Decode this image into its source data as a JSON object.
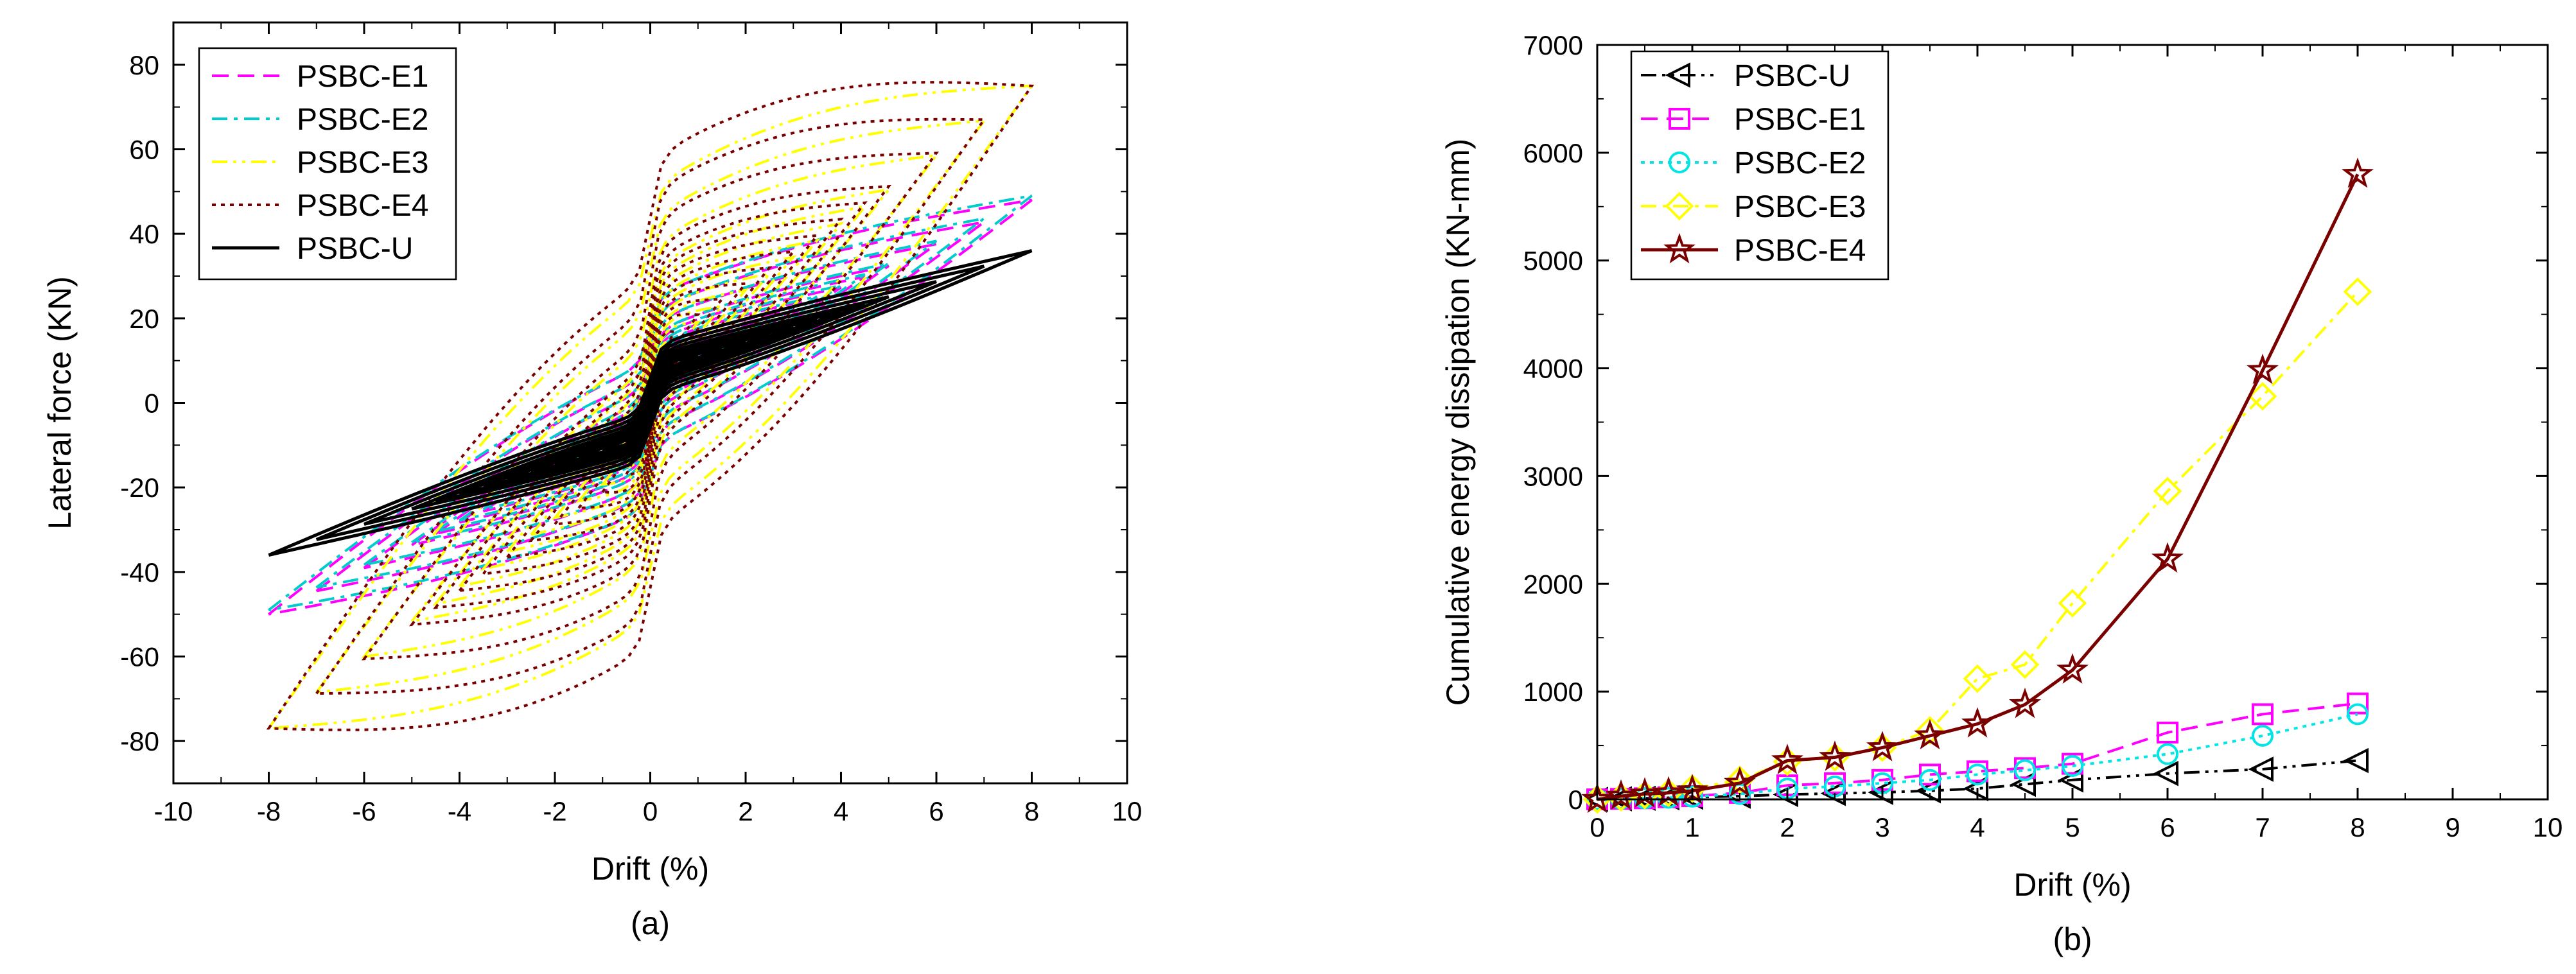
{
  "chart_data": [
    {
      "id": "a",
      "type": "line",
      "subtype": "hysteresis",
      "caption": "(a)",
      "xlabel": "Drift (%)",
      "ylabel": "Lateral force (KN)",
      "xlim": [
        -10,
        10
      ],
      "ylim": [
        -90,
        90
      ],
      "xticks": [
        "-10",
        "-8",
        "-6",
        "-4",
        "-2",
        "0",
        "2",
        "4",
        "6",
        "8",
        "10"
      ],
      "yticks": [
        "-80",
        "-60",
        "-40",
        "-20",
        "0",
        "20",
        "40",
        "60",
        "80"
      ],
      "legend_position": "top-left",
      "series": [
        {
          "name": "PSBC-E1",
          "color": "#ff00ff",
          "dash": "dash",
          "drifts": [
            0.5,
            1,
            1.5,
            2,
            2.5,
            3,
            3.5,
            4,
            4.5,
            5,
            6,
            7,
            8
          ],
          "peak_pos": 48,
          "peak_neg": -50,
          "init_force": 8,
          "pinch": 0.55
        },
        {
          "name": "PSBC-E2",
          "color": "#00cccc",
          "dash": "dashdot",
          "drifts": [
            0.5,
            1,
            1.5,
            2,
            2.5,
            3,
            3.5,
            4,
            4.5,
            5,
            6,
            7,
            8
          ],
          "peak_pos": 49,
          "peak_neg": -49,
          "init_force": 8,
          "pinch": 0.55
        },
        {
          "name": "PSBC-E3",
          "color": "#ffff00",
          "dash": "dashdotdot",
          "drifts": [
            0.5,
            1,
            1.5,
            2,
            2.5,
            3,
            3.5,
            4,
            4.5,
            5,
            6,
            7,
            8
          ],
          "peak_pos": 75,
          "peak_neg": -77,
          "init_force": 12,
          "pinch": 0.8
        },
        {
          "name": "PSBC-E4",
          "color": "#7a0000",
          "dash": "dot",
          "drifts": [
            0.5,
            1,
            1.5,
            2,
            2.5,
            3,
            3.5,
            4,
            4.5,
            5,
            6,
            7,
            8
          ],
          "peak_pos": 75,
          "peak_neg": -77,
          "init_force": 14,
          "pinch": 0.9
        },
        {
          "name": "PSBC-U",
          "color": "#000000",
          "dash": "solid",
          "drifts": [
            0.5,
            1,
            1.5,
            2,
            2.5,
            3,
            3.5,
            4,
            4.5,
            5,
            6,
            7,
            8
          ],
          "peak_pos": 36,
          "peak_neg": -36,
          "init_force": 8,
          "pinch": 0.25
        }
      ]
    },
    {
      "id": "b",
      "type": "line",
      "caption": "(b)",
      "xlabel": "Drift (%)",
      "ylabel": "Cumulative energy dissipation (KN-mm)",
      "xlim": [
        0,
        10
      ],
      "ylim": [
        0,
        7000
      ],
      "xticks": [
        "0",
        "1",
        "2",
        "3",
        "4",
        "5",
        "6",
        "7",
        "8",
        "9",
        "10"
      ],
      "yticks": [
        "0",
        "1000",
        "2000",
        "3000",
        "4000",
        "5000",
        "6000",
        "7000"
      ],
      "legend_position": "top-left",
      "x": [
        0,
        0.25,
        0.5,
        0.75,
        1,
        1.5,
        2,
        2.5,
        3,
        3.5,
        4,
        4.5,
        5,
        6,
        7,
        8
      ],
      "series": [
        {
          "name": "PSBC-U",
          "color": "#000000",
          "dash": "dashdotdot",
          "marker": "triangle-left",
          "values": [
            0,
            5,
            10,
            15,
            20,
            30,
            45,
            55,
            65,
            80,
            100,
            140,
            180,
            240,
            280,
            360
          ]
        },
        {
          "name": "PSBC-E1",
          "color": "#ff00ff",
          "dash": "dash",
          "marker": "square",
          "values": [
            0,
            5,
            10,
            20,
            30,
            60,
            130,
            150,
            180,
            230,
            260,
            290,
            330,
            620,
            790,
            890
          ]
        },
        {
          "name": "PSBC-E2",
          "color": "#00e5e5",
          "dash": "dot",
          "marker": "circle",
          "values": [
            0,
            5,
            10,
            15,
            25,
            50,
            100,
            120,
            150,
            180,
            230,
            270,
            310,
            420,
            590,
            790
          ]
        },
        {
          "name": "PSBC-E3",
          "color": "#ffff00",
          "dash": "dashdot",
          "marker": "diamond",
          "values": [
            0,
            20,
            40,
            60,
            100,
            180,
            350,
            390,
            480,
            640,
            1120,
            1250,
            1820,
            2860,
            3740,
            4710
          ]
        },
        {
          "name": "PSBC-E4",
          "color": "#7a0000",
          "dash": "solid",
          "marker": "star",
          "values": [
            0,
            30,
            50,
            60,
            80,
            150,
            360,
            390,
            480,
            590,
            700,
            880,
            1200,
            2230,
            3980,
            5800
          ]
        }
      ]
    }
  ]
}
